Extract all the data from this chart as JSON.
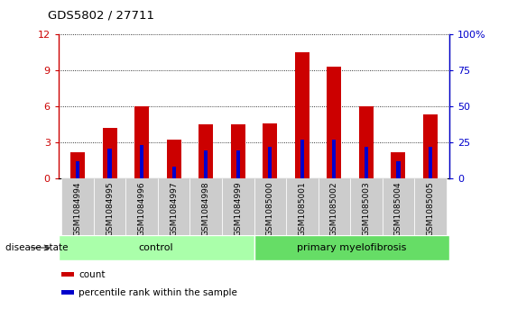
{
  "title": "GDS5802 / 27711",
  "samples": [
    "GSM1084994",
    "GSM1084995",
    "GSM1084996",
    "GSM1084997",
    "GSM1084998",
    "GSM1084999",
    "GSM1085000",
    "GSM1085001",
    "GSM1085002",
    "GSM1085003",
    "GSM1085004",
    "GSM1085005"
  ],
  "counts": [
    2.2,
    4.2,
    6.0,
    3.2,
    4.5,
    4.5,
    4.6,
    10.5,
    9.3,
    6.0,
    2.2,
    5.3
  ],
  "percentiles": [
    1.4,
    2.5,
    2.8,
    1.0,
    2.3,
    2.3,
    2.6,
    3.2,
    3.2,
    2.6,
    1.4,
    2.6
  ],
  "bar_color": "#cc0000",
  "percentile_color": "#0000cc",
  "bar_width": 0.45,
  "percentile_bar_width": 0.12,
  "ylim_left": [
    0,
    12
  ],
  "ylim_right": [
    0,
    100
  ],
  "yticks_left": [
    0,
    3,
    6,
    9,
    12
  ],
  "yticks_right": [
    0,
    25,
    50,
    75,
    100
  ],
  "groups": [
    {
      "label": "control",
      "start": 0,
      "end": 6,
      "color": "#aaffaa"
    },
    {
      "label": "primary myelofibrosis",
      "start": 6,
      "end": 12,
      "color": "#66dd66"
    }
  ],
  "disease_state_label": "disease state",
  "tick_color_left": "#cc0000",
  "tick_color_right": "#0000cc",
  "background_xtick": "#cccccc",
  "legend_items": [
    {
      "label": "count",
      "color": "#cc0000"
    },
    {
      "label": "percentile rank within the sample",
      "color": "#0000cc"
    }
  ],
  "grid_style": "dotted",
  "grid_color": "#000000"
}
